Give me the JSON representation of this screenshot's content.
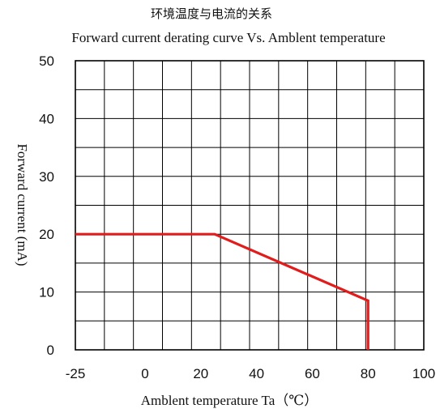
{
  "chart_data": {
    "type": "line",
    "title": "环境温度与电流的关系",
    "subtitle": "Forward current derating curve Vs. Amblent temperature",
    "xlabel": "Amblent temperature Ta（℃）",
    "ylabel": "Forward current (mA)",
    "xlim": [
      -25,
      100
    ],
    "ylim": [
      0,
      50
    ],
    "grid": true,
    "x_ticks": [
      -25,
      0,
      20,
      40,
      60,
      80,
      100
    ],
    "x_tick_labels": [
      "-25",
      "0",
      "20",
      "40",
      "60",
      "80",
      "100"
    ],
    "y_ticks": [
      0,
      10,
      20,
      30,
      40,
      50
    ],
    "y_tick_labels": [
      "0",
      "10",
      "20",
      "30",
      "40",
      "50"
    ],
    "series": [
      {
        "color": "#e21b1b",
        "x": [
          -25,
          25,
          80,
          80
        ],
        "y": [
          20,
          20,
          8.5,
          0
        ]
      }
    ]
  }
}
